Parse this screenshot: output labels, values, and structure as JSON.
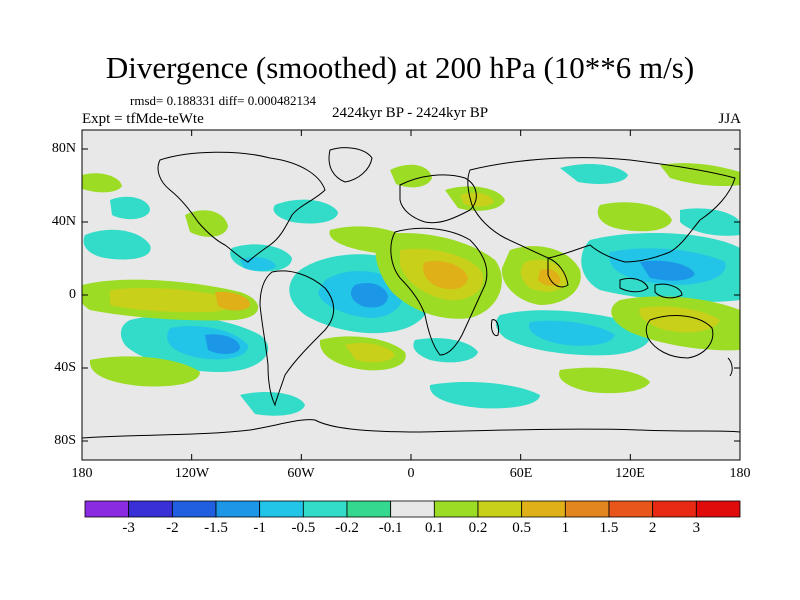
{
  "title": "Divergence (smoothed) at 200 hPa (10**6 m/s)",
  "stats": "rmsd= 0.188331 diff= 0.000482134",
  "experiment": "Expt = tfMde-teWte",
  "period": "2424kyr BP - 2424kyr BP",
  "season": "JJA",
  "y_axis": {
    "ticks": [
      "80N",
      "40N",
      "0",
      "40S",
      "80S"
    ]
  },
  "x_axis": {
    "ticks": [
      "180",
      "120W",
      "60W",
      "0",
      "60E",
      "120E",
      "180"
    ]
  },
  "colorbar": {
    "labels": [
      "-3",
      "-2",
      "-1.5",
      "-1",
      "-0.5",
      "-0.2",
      "-0.1",
      "0.1",
      "0.2",
      "0.5",
      "1",
      "1.5",
      "2",
      "3"
    ],
    "colors": [
      "#8a2be2",
      "#3a30d8",
      "#1f5fe0",
      "#1c96e6",
      "#22c4e8",
      "#32dcc8",
      "#34d88e",
      "#e8e8e8",
      "#9cdc24",
      "#c8d01a",
      "#e0b018",
      "#e2861e",
      "#e8561c",
      "#e82a14",
      "#e00c0c"
    ]
  },
  "colors": {
    "background": "#e8e8e8",
    "coast": "#000000"
  }
}
